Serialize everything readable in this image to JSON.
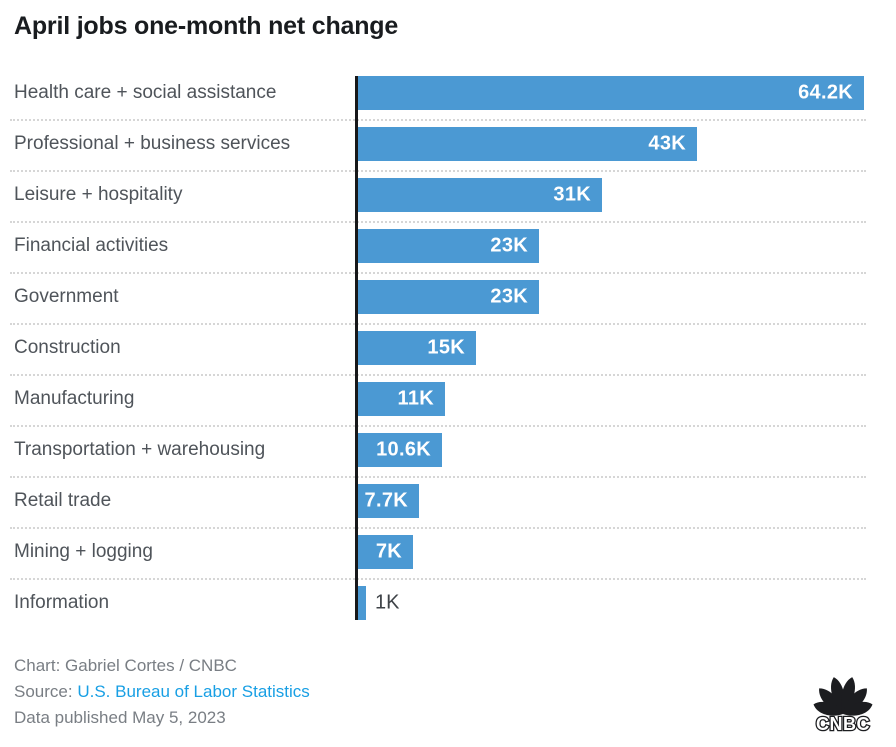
{
  "chart_data": {
    "type": "bar",
    "orientation": "horizontal",
    "title": "April jobs one-month net change",
    "categories": [
      "Health care + social assistance",
      "Professional + business services",
      "Leisure + hospitality",
      "Financial activities",
      "Government",
      "Construction",
      "Manufacturing",
      "Transportation + warehousing",
      "Retail trade",
      "Mining + logging",
      "Information"
    ],
    "values_thousands": [
      64.2,
      43,
      31,
      23,
      23,
      15,
      11,
      10.6,
      7.7,
      7,
      1
    ],
    "value_labels": [
      "64.2K",
      "43K",
      "31K",
      "23K",
      "23K",
      "15K",
      "11K",
      "10.6K",
      "7.7K",
      "7K",
      "1K"
    ],
    "xlim": [
      0,
      64.2
    ],
    "grid": "dotted-row-separators",
    "legend": "none",
    "bar_color": "#4b99d3"
  },
  "footer": {
    "credit": "Chart: Gabriel Cortes / CNBC",
    "source_prefix": "Source:",
    "source_link_text": "U.S. Bureau of Labor Statistics",
    "published": "Data published May 5, 2023"
  },
  "branding": {
    "logo_name": "cnbc-peacock-logo",
    "logo_text": "CNBC"
  },
  "colors": {
    "bar": "#4b99d3",
    "link": "#189fe4",
    "title_text": "#191c1f",
    "category_text": "#4f545a",
    "footer_text": "#797e84",
    "axis": "#17181a",
    "separator": "#d6d6d6",
    "value_inside": "#ffffff",
    "value_outside": "#3e4247",
    "logo": "#1c1d20"
  }
}
